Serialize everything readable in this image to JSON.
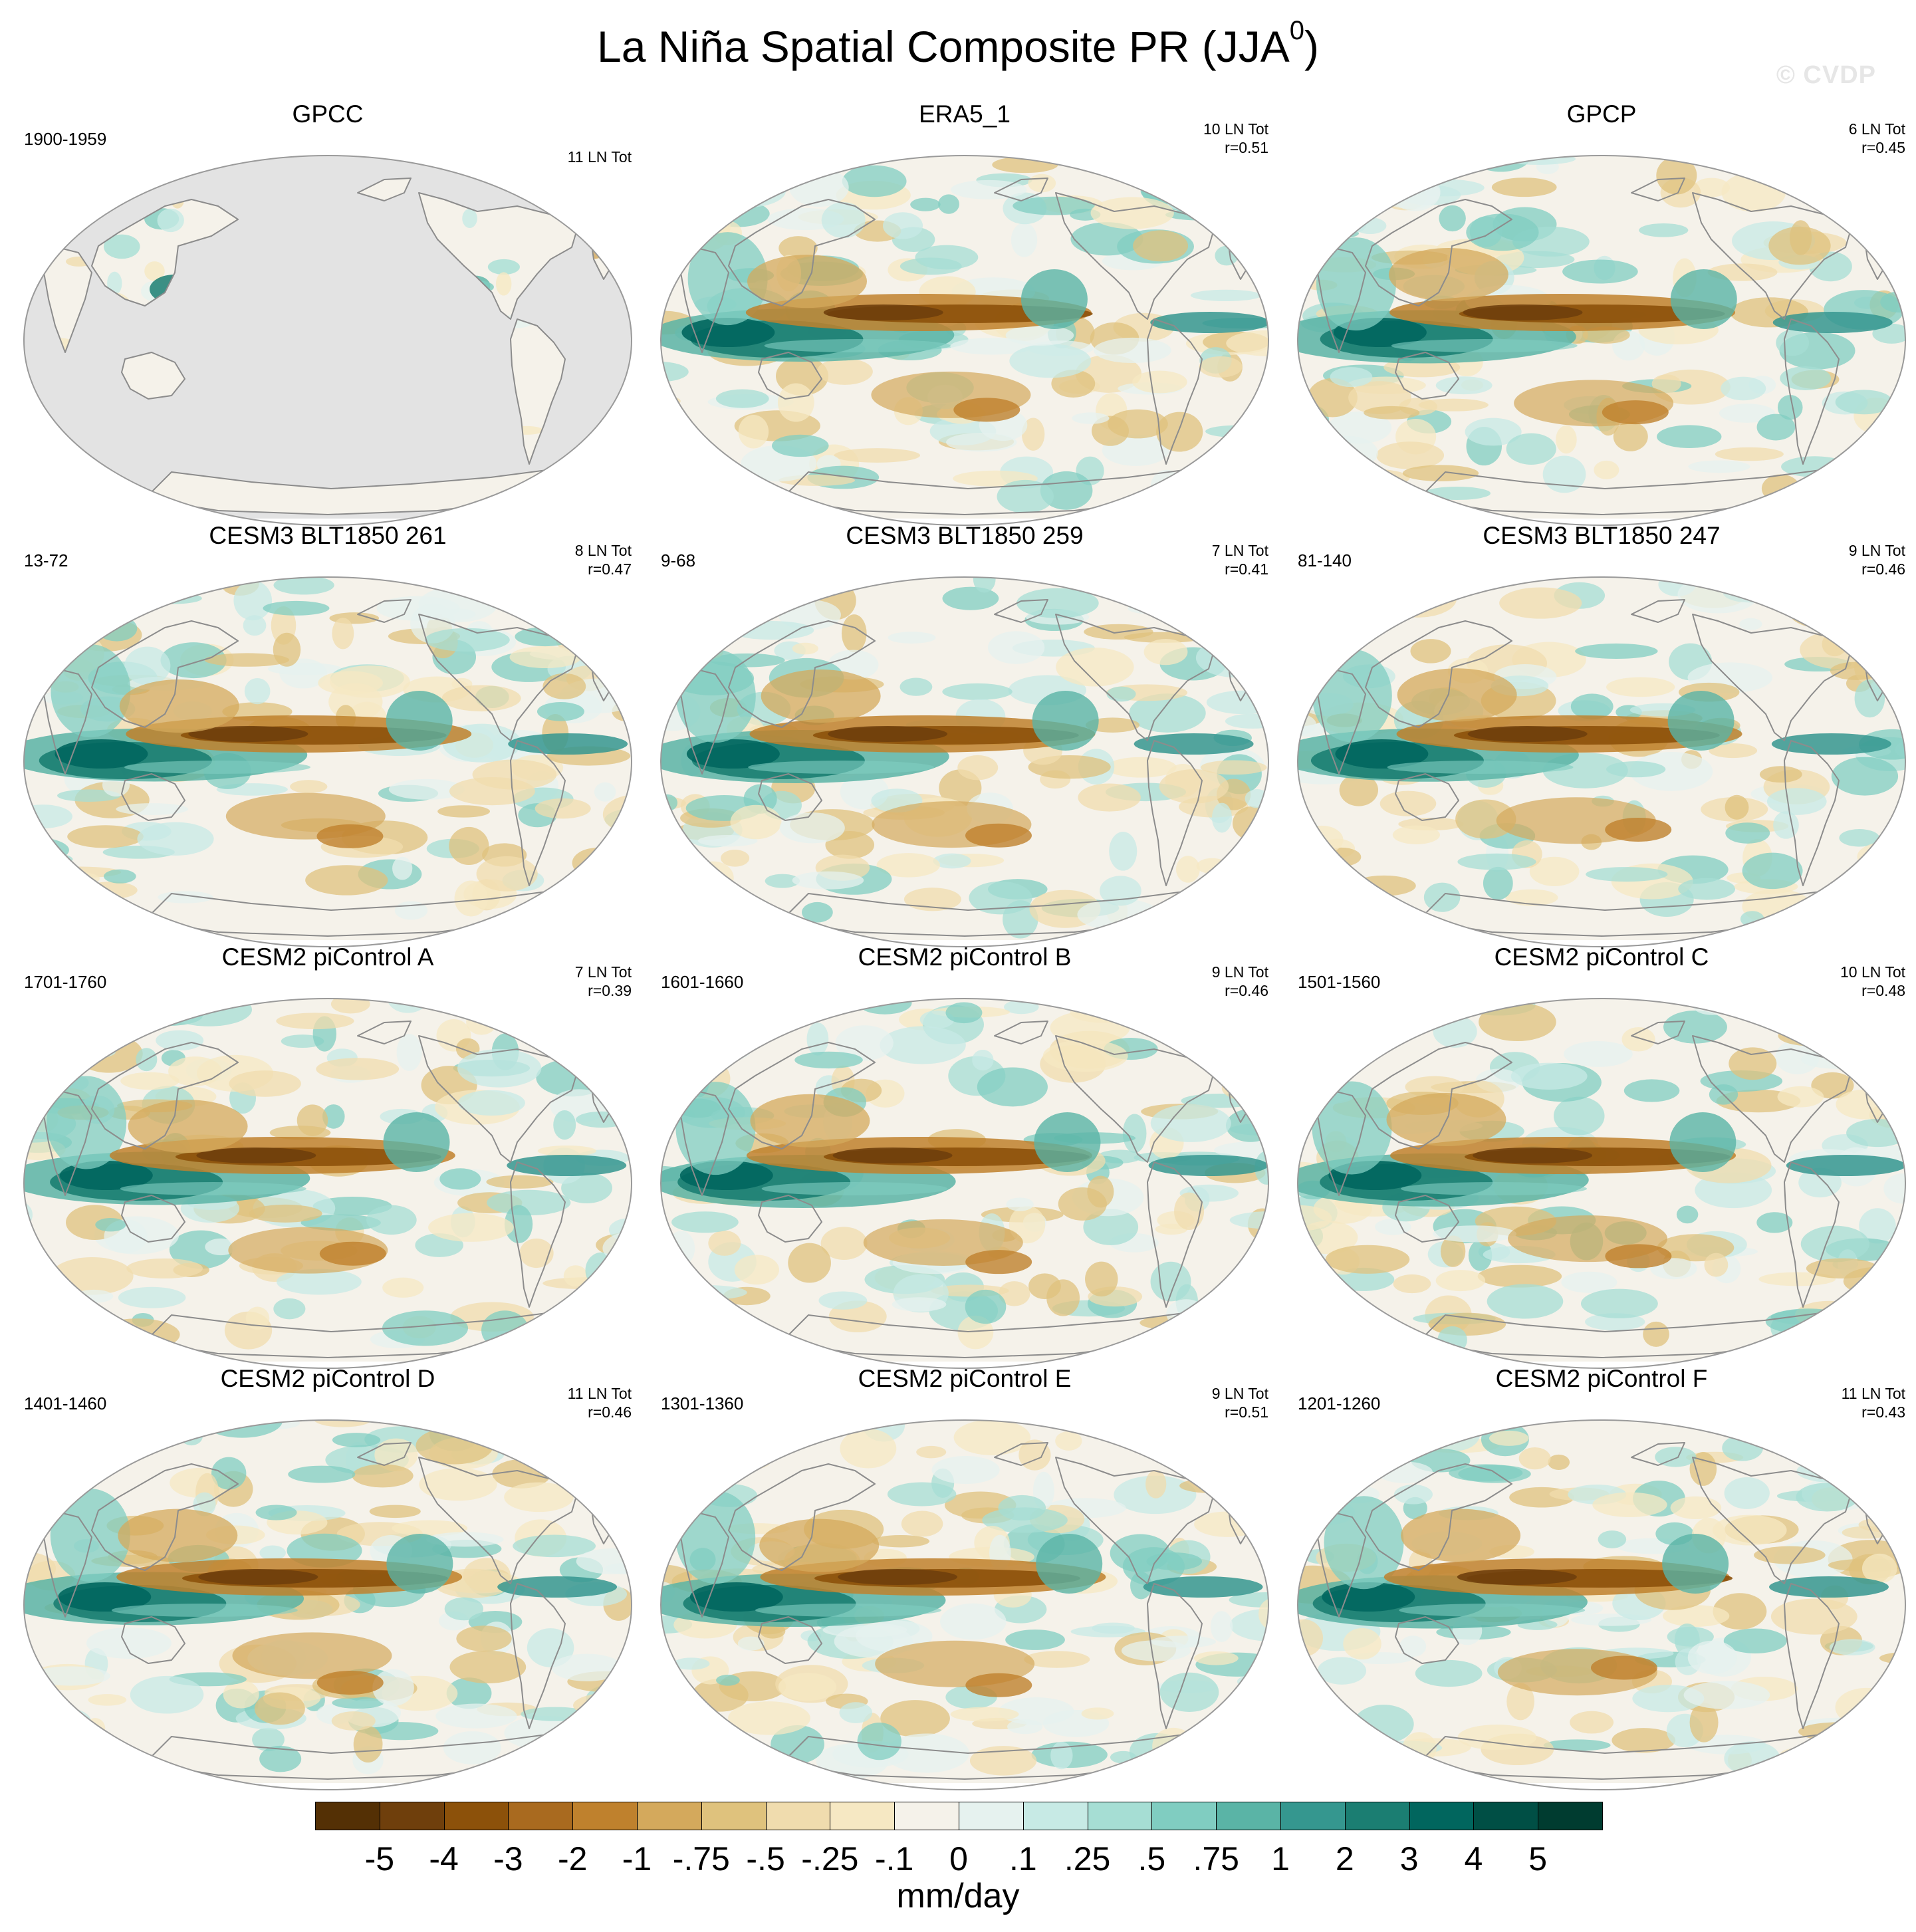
{
  "title": {
    "main": "La Niña Spatial Composite PR (JJA",
    "superscript": "0",
    "close": ")"
  },
  "watermark": "© CVDP",
  "panels": [
    {
      "name": "GPCC",
      "years": "1900-1959",
      "count": "11 LN Tot",
      "corr": "",
      "coverage": "land",
      "seed": 3
    },
    {
      "name": "ERA5_1",
      "years": "",
      "count": "10 LN Tot",
      "corr": "r=0.51",
      "coverage": "full",
      "seed": 11
    },
    {
      "name": "GPCP",
      "years": "",
      "count": "6 LN Tot",
      "corr": "r=0.45",
      "coverage": "full",
      "seed": 17
    },
    {
      "name": "CESM3 BLT1850 261",
      "years": "13-72",
      "count": "8 LN Tot",
      "corr": "r=0.47",
      "coverage": "full",
      "seed": 23
    },
    {
      "name": "CESM3 BLT1850 259",
      "years": "9-68",
      "count": "7 LN Tot",
      "corr": "r=0.41",
      "coverage": "full",
      "seed": 29
    },
    {
      "name": "CESM3 BLT1850 247",
      "years": "81-140",
      "count": "9 LN Tot",
      "corr": "r=0.46",
      "coverage": "full",
      "seed": 31
    },
    {
      "name": "CESM2 piControl A",
      "years": "1701-1760",
      "count": "7 LN Tot",
      "corr": "r=0.39",
      "coverage": "full",
      "seed": 37
    },
    {
      "name": "CESM2 piControl B",
      "years": "1601-1660",
      "count": "9 LN Tot",
      "corr": "r=0.46",
      "coverage": "full",
      "seed": 41
    },
    {
      "name": "CESM2 piControl C",
      "years": "1501-1560",
      "count": "10 LN Tot",
      "corr": "r=0.48",
      "coverage": "full",
      "seed": 43
    },
    {
      "name": "CESM2 piControl D",
      "years": "1401-1460",
      "count": "11 LN Tot",
      "corr": "r=0.46",
      "coverage": "full",
      "seed": 47
    },
    {
      "name": "CESM2 piControl E",
      "years": "1301-1360",
      "count": "9 LN Tot",
      "corr": "r=0.51",
      "coverage": "full",
      "seed": 53
    },
    {
      "name": "CESM2 piControl F",
      "years": "1201-1260",
      "count": "11 LN Tot",
      "corr": "r=0.43",
      "coverage": "full",
      "seed": 59
    }
  ],
  "colorbar": {
    "units": "mm/day",
    "labels": [
      "-5",
      "-4",
      "-3",
      "-2",
      "-1",
      "-.75",
      "-.5",
      "-.25",
      "-.1",
      "0",
      ".1",
      ".25",
      ".5",
      ".75",
      "1",
      "2",
      "3",
      "4",
      "5"
    ],
    "colors": [
      "#543005",
      "#6f3f0c",
      "#8c510a",
      "#a96a1f",
      "#bf812d",
      "#d4a95c",
      "#dfc27d",
      "#f0dcae",
      "#f6e8c3",
      "#f5f2ea",
      "#e6f2ef",
      "#c7eae5",
      "#a6ded4",
      "#80cdc1",
      "#5ab4a6",
      "#35978f",
      "#1b7e72",
      "#01665e",
      "#004f45",
      "#003c30"
    ],
    "mask_color": "#e3e3e3"
  }
}
